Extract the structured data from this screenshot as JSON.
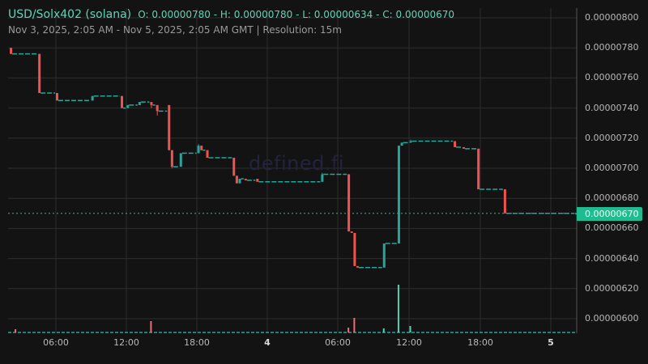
{
  "header": {
    "symbol": "USD/Solx402 (solana)",
    "ohlc": "O: 0.00000780 - H: 0.00000780 - L: 0.00000634 - C: 0.00000670",
    "range": "Nov 3, 2025, 2:05 AM - Nov 5, 2025, 2:05 AM GMT   |   Resolution: 15m"
  },
  "watermark": "defined.fi",
  "current_price_label": "0.00000670",
  "colors": {
    "background": "#131313",
    "grid": "#2e2e2e",
    "up": "#26a69a",
    "down": "#ef5350",
    "accent": "#1fbc92",
    "text": "#b8b8b8"
  },
  "chart_data": {
    "type": "candlestick",
    "title": "USD/Solx402 (solana)",
    "subtitle": "Nov 3, 2025, 2:05 AM - Nov 5, 2025, 2:05 AM GMT | Resolution: 15m",
    "xlabel": "",
    "ylabel": "",
    "y_ticks": [
      "0.00000800",
      "0.00000780",
      "0.00000760",
      "0.00000740",
      "0.00000720",
      "0.00000700",
      "0.00000680",
      "0.00000660",
      "0.00000640",
      "0.00000620",
      "0.00000600"
    ],
    "x_ticks": [
      "06:00",
      "12:00",
      "18:00",
      "4",
      "06:00",
      "12:00",
      "18:00",
      "5"
    ],
    "ylim": [
      5.9e-06,
      8.05e-06
    ],
    "current_price": 6.7e-06,
    "ohlc_summary": {
      "open": 7.8e-06,
      "high": 7.8e-06,
      "low": 6.34e-06,
      "close": 6.7e-06
    },
    "grid": true,
    "candles": [
      {
        "t": "Nov 3 02:05",
        "o": 7.8,
        "h": 7.8,
        "l": 7.76,
        "c": 7.76
      },
      {
        "t": "Nov 3 04:30",
        "o": 7.76,
        "h": 7.76,
        "l": 7.5,
        "c": 7.5
      },
      {
        "t": "Nov 3 06:00",
        "o": 7.5,
        "h": 7.5,
        "l": 7.45,
        "c": 7.45
      },
      {
        "t": "Nov 3 09:00",
        "o": 7.45,
        "h": 7.48,
        "l": 7.45,
        "c": 7.48
      },
      {
        "t": "Nov 3 11:30",
        "o": 7.48,
        "h": 7.48,
        "l": 7.4,
        "c": 7.4
      },
      {
        "t": "Nov 3 12:00",
        "o": 7.4,
        "h": 7.42,
        "l": 7.4,
        "c": 7.42
      },
      {
        "t": "Nov 3 13:00",
        "o": 7.42,
        "h": 7.44,
        "l": 7.42,
        "c": 7.44
      },
      {
        "t": "Nov 3 14:00",
        "o": 7.44,
        "h": 7.44,
        "l": 7.4,
        "c": 7.42
      },
      {
        "t": "Nov 3 14:30",
        "o": 7.42,
        "h": 7.42,
        "l": 7.35,
        "c": 7.38
      },
      {
        "t": "Nov 3 15:30",
        "o": 7.42,
        "h": 7.42,
        "l": 7.12,
        "c": 7.12
      },
      {
        "t": "Nov 3 15:45",
        "o": 7.12,
        "h": 7.12,
        "l": 7.0,
        "c": 7.01
      },
      {
        "t": "Nov 3 16:30",
        "o": 7.01,
        "h": 7.1,
        "l": 7.01,
        "c": 7.1
      },
      {
        "t": "Nov 3 18:00",
        "o": 7.1,
        "h": 7.16,
        "l": 7.1,
        "c": 7.15
      },
      {
        "t": "Nov 3 18:15",
        "o": 7.15,
        "h": 7.15,
        "l": 7.12,
        "c": 7.12
      },
      {
        "t": "Nov 3 18:45",
        "o": 7.12,
        "h": 7.12,
        "l": 7.07,
        "c": 7.07
      },
      {
        "t": "Nov 3 21:00",
        "o": 7.07,
        "h": 7.07,
        "l": 6.95,
        "c": 6.95
      },
      {
        "t": "Nov 3 21:15",
        "o": 6.95,
        "h": 6.95,
        "l": 6.9,
        "c": 6.9
      },
      {
        "t": "Nov 3 21:30",
        "o": 6.9,
        "h": 6.93,
        "l": 6.9,
        "c": 6.93
      },
      {
        "t": "Nov 3 22:00",
        "o": 6.93,
        "h": 6.93,
        "l": 6.92,
        "c": 6.92
      },
      {
        "t": "Nov 3 23:00",
        "o": 6.93,
        "h": 6.93,
        "l": 6.91,
        "c": 6.91
      },
      {
        "t": "Nov 4 04:30",
        "o": 6.91,
        "h": 6.97,
        "l": 6.91,
        "c": 6.96
      },
      {
        "t": "Nov 4 06:45",
        "o": 6.96,
        "h": 6.96,
        "l": 6.58,
        "c": 6.58
      },
      {
        "t": "Nov 4 07:00",
        "o": 6.58,
        "h": 6.58,
        "l": 6.57,
        "c": 6.57
      },
      {
        "t": "Nov 4 07:15",
        "o": 6.57,
        "h": 6.57,
        "l": 6.35,
        "c": 6.35
      },
      {
        "t": "Nov 4 07:30",
        "o": 6.35,
        "h": 6.35,
        "l": 6.34,
        "c": 6.34
      },
      {
        "t": "Nov 4 09:45",
        "o": 6.34,
        "h": 6.5,
        "l": 6.34,
        "c": 6.5
      },
      {
        "t": "Nov 4 11:00",
        "o": 6.5,
        "h": 7.15,
        "l": 6.5,
        "c": 7.15
      },
      {
        "t": "Nov 4 11:15",
        "o": 7.15,
        "h": 7.17,
        "l": 7.15,
        "c": 7.17
      },
      {
        "t": "Nov 4 12:00",
        "o": 7.17,
        "h": 7.19,
        "l": 7.17,
        "c": 7.18
      },
      {
        "t": "Nov 4 15:45",
        "o": 7.18,
        "h": 7.18,
        "l": 7.14,
        "c": 7.14
      },
      {
        "t": "Nov 4 16:30",
        "o": 7.14,
        "h": 7.14,
        "l": 7.13,
        "c": 7.13
      },
      {
        "t": "Nov 4 17:45",
        "o": 7.13,
        "h": 7.13,
        "l": 6.86,
        "c": 6.86
      },
      {
        "t": "Nov 4 20:00",
        "o": 6.86,
        "h": 6.86,
        "l": 6.7,
        "c": 6.7
      },
      {
        "t": "Nov 5 02:05",
        "o": 6.7,
        "h": 6.7,
        "l": 6.7,
        "c": 6.7
      }
    ],
    "candle_units": "values ×1e-6",
    "volume": [
      {
        "t": "Nov 3 02:30",
        "v": 4,
        "dir": "down"
      },
      {
        "t": "Nov 3 14:00",
        "v": 14,
        "dir": "down"
      },
      {
        "t": "Nov 4 06:45",
        "v": 6,
        "dir": "down"
      },
      {
        "t": "Nov 4 07:15",
        "v": 18,
        "dir": "down"
      },
      {
        "t": "Nov 4 09:45",
        "v": 5,
        "dir": "up"
      },
      {
        "t": "Nov 4 11:00",
        "v": 59,
        "dir": "up"
      },
      {
        "t": "Nov 4 12:00",
        "v": 8,
        "dir": "up"
      }
    ]
  }
}
